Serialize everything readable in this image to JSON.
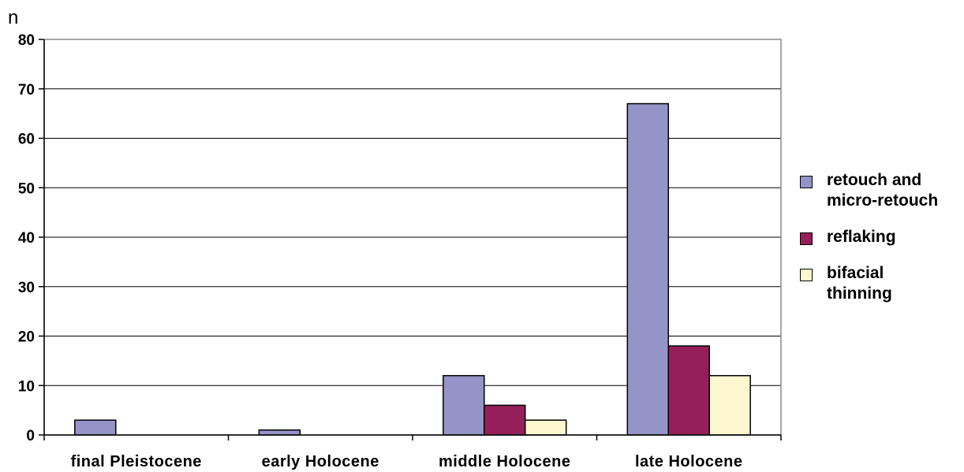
{
  "chart_data": {
    "type": "bar",
    "ylabel": "n",
    "xlabel": "",
    "title": "",
    "ylim": [
      0,
      80
    ],
    "yticks": [
      "0",
      "10",
      "20",
      "30",
      "40",
      "50",
      "60",
      "70",
      "80"
    ],
    "grid": true,
    "legend_position": "right",
    "categories": [
      "final Pleistocene",
      "early Holocene",
      "middle Holocene",
      "late Holocene"
    ],
    "series": [
      {
        "name": "retouch and\nmicro-retouch",
        "color": "#9494c8",
        "values": [
          3,
          1,
          12,
          67
        ]
      },
      {
        "name": "reflaking",
        "color": "#952059",
        "values": [
          0,
          0,
          6,
          18
        ]
      },
      {
        "name": "bifacial\nthinning",
        "color": "#fdf8cf",
        "values": [
          0,
          0,
          3,
          12
        ]
      }
    ]
  }
}
